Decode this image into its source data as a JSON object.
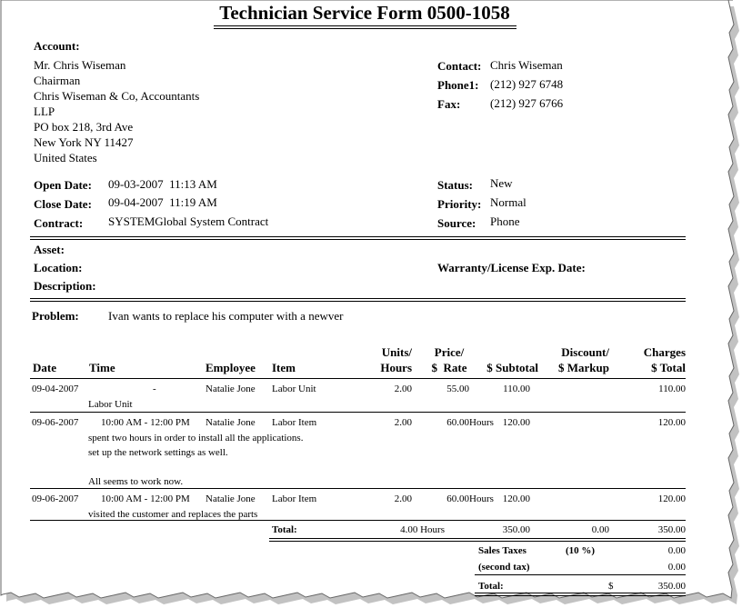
{
  "title": "Technician Service Form 0500-1058",
  "account": {
    "label": "Account:",
    "lines": [
      "Mr. Chris Wiseman",
      "Chairman",
      "Chris Wiseman & Co, Accountants",
      "LLP",
      "PO box 218, 3rd Ave",
      "New York NY 11427",
      "United States"
    ]
  },
  "contact": [
    {
      "label": "Contact:",
      "value": "Chris Wiseman"
    },
    {
      "label": "Phone1:",
      "value": "(212) 927 6748"
    },
    {
      "label": "Fax:",
      "value": "(212) 927 6766"
    }
  ],
  "dates": [
    {
      "label": "Open Date:",
      "value": "09-03-2007  11:13 AM"
    },
    {
      "label": "Close Date:",
      "value": "09-04-2007  11:19 AM"
    },
    {
      "label": "Contract:",
      "value": "SYSTEMGlobal System Contract"
    }
  ],
  "status": [
    {
      "label": "Status:",
      "value": "New"
    },
    {
      "label": "Priority:",
      "value": "Normal"
    },
    {
      "label": "Source:",
      "value": "Phone"
    }
  ],
  "asset": [
    "Asset:",
    "Location:",
    "Description:"
  ],
  "warranty": "Warranty/License Exp. Date:",
  "problem": {
    "label": "Problem:",
    "value": "Ivan wants to replace his computer with a newver"
  },
  "table": {
    "headers": [
      [
        "Date"
      ],
      [
        "Time"
      ],
      [
        "Employee"
      ],
      [
        "Item"
      ],
      [
        "Units/",
        "Hours"
      ],
      [
        "Price/",
        "$  Rate"
      ],
      [
        "$ Subtotal"
      ],
      [
        "Discount/",
        "$ Markup"
      ],
      [
        "Charges",
        "$ Total"
      ]
    ],
    "rows": [
      {
        "date": "09-04-2007",
        "time": "-",
        "employee": "Natalie Jone",
        "item": "Labor Unit",
        "units": "2.00",
        "rate": "55.00",
        "subtotal": "110.00",
        "total": "110.00",
        "notes": [
          "Labor Unit"
        ]
      },
      {
        "date": "09-06-2007",
        "time": "10:00 AM - 12:00 PM",
        "employee": "Natalie Jone",
        "item": "Labor Item",
        "units": "2.00",
        "rate": "60.00",
        "rate_unit": "Hours",
        "subtotal": "120.00",
        "total": "120.00",
        "notes": [
          "spent two hours in order to install all the applications.",
          "set up the network settings as well.",
          "All seems to work now."
        ]
      },
      {
        "date": "09-06-2007",
        "time": "10:00 AM - 12:00 PM",
        "employee": "Natalie Jone",
        "item": "Labor Item",
        "units": "2.00",
        "rate": "60.00",
        "rate_unit": "Hours",
        "subtotal": "120.00",
        "total": "120.00",
        "notes": [
          "visited the customer and replaces the parts"
        ]
      }
    ],
    "total": {
      "label": "Total:",
      "hours": "4.00 Hours",
      "subtotal": "350.00",
      "markup": "0.00",
      "total": "350.00"
    }
  },
  "taxes": [
    {
      "label": "Sales Taxes",
      "rate": "(10 %)",
      "value": "0.00"
    },
    {
      "label": "(second tax)",
      "value": "0.00"
    }
  ],
  "grand_total": {
    "label": "Total:",
    "currency": "$",
    "value": "350.00"
  }
}
